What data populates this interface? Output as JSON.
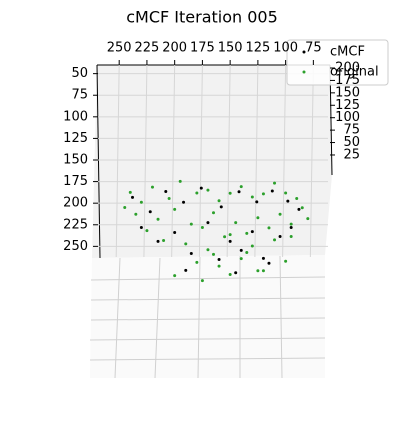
{
  "chart_data": {
    "type": "scatter3d",
    "title": "cMCF Iteration 005",
    "xlim": [
      60,
      270
    ],
    "xticks": [
      250,
      225,
      200,
      175,
      150,
      125,
      100,
      75
    ],
    "ylim": [
      40,
      260
    ],
    "yticks": [
      50,
      75,
      100,
      125,
      150,
      175,
      200,
      225,
      250
    ],
    "zlim": [
      0,
      210
    ],
    "zticks": [
      200,
      175,
      150,
      125,
      100,
      75,
      50,
      25
    ],
    "grid": true,
    "legend": "upper right",
    "series": [
      {
        "name": "cMCF",
        "color": "#000000",
        "x": [
          238,
          222,
          208,
          192,
          176,
          158,
          142,
          126,
          112,
          98,
          88,
          230,
          200,
          170,
          150,
          130,
          105,
          185,
          160,
          140,
          120,
          190,
          145,
          115,
          215,
          95
        ],
        "y": [
          155,
          170,
          150,
          160,
          145,
          165,
          150,
          160,
          148,
          158,
          170,
          190,
          195,
          185,
          205,
          195,
          200,
          220,
          228,
          215,
          225,
          240,
          242,
          232,
          205,
          190
        ],
        "z": [
          100,
          95,
          105,
          98,
          102,
          97,
          104,
          99,
          101,
          96,
          103,
          100,
          98,
          102,
          97,
          101,
          99,
          100,
          103,
          96,
          98,
          101,
          99,
          102,
          97,
          100
        ]
      },
      {
        "name": "original",
        "color": "#2ca02c",
        "x": [
          240,
          230,
          220,
          205,
          195,
          180,
          170,
          160,
          150,
          140,
          130,
          120,
          110,
          100,
          90,
          85,
          235,
          215,
          200,
          185,
          175,
          165,
          155,
          145,
          135,
          125,
          115,
          105,
          95,
          210,
          190,
          170,
          150,
          130,
          110,
          180,
          160,
          140,
          120,
          100,
          200,
          175,
          150,
          125,
          245,
          225,
          95,
          80,
          165,
          135
        ],
        "y": [
          150,
          160,
          145,
          155,
          140,
          150,
          145,
          160,
          150,
          145,
          155,
          150,
          140,
          150,
          155,
          165,
          175,
          180,
          170,
          185,
          190,
          175,
          200,
          185,
          195,
          180,
          190,
          175,
          185,
          205,
          210,
          215,
          200,
          210,
          205,
          230,
          235,
          225,
          240,
          230,
          245,
          250,
          245,
          240,
          165,
          195,
          200,
          180,
          220,
          220
        ],
        "z": [
          102,
          98,
          105,
          96,
          110,
          100,
          95,
          103,
          99,
          107,
          101,
          97,
          104,
          100,
          96,
          94,
          101,
          99,
          103,
          97,
          100,
          106,
          98,
          102,
          95,
          104,
          99,
          101,
          97,
          100,
          103,
          98,
          105,
          96,
          102,
          99,
          101,
          97,
          100,
          103,
          98,
          96,
          102,
          100,
          95,
          104,
          99,
          101,
          97,
          103
        ]
      }
    ]
  }
}
